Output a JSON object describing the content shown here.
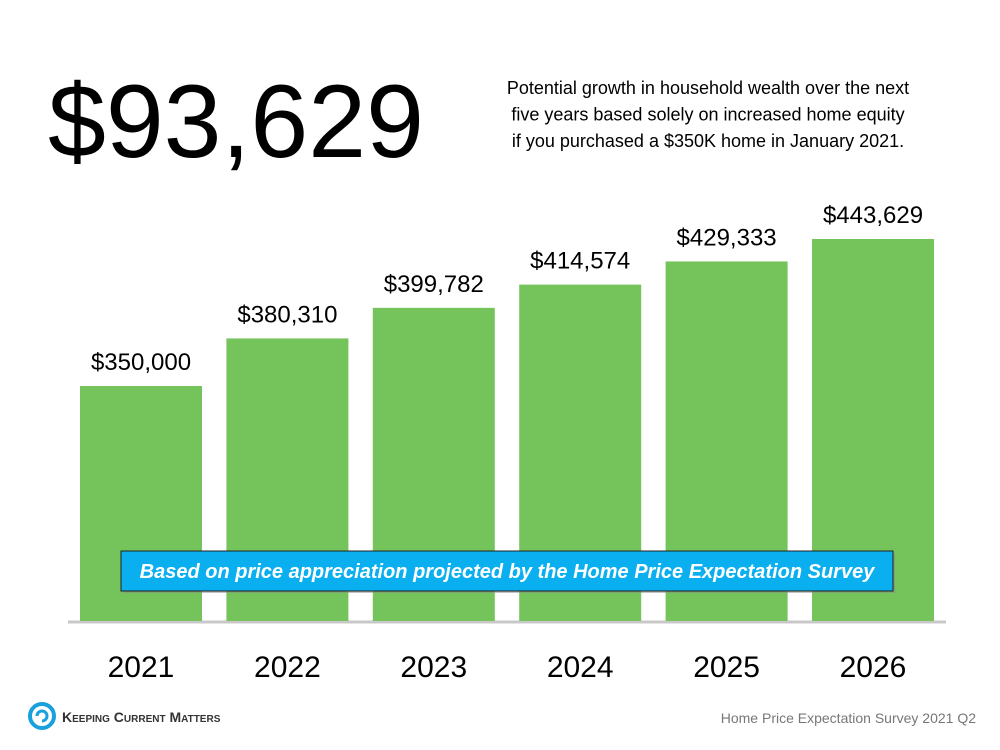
{
  "chart_data": {
    "type": "bar",
    "title": "$93,629",
    "subtitle": [
      "Potential growth in household wealth over the next",
      "five years based solely on increased home equity",
      "if you purchased a $350K home in January 2021."
    ],
    "categories": [
      "2021",
      "2022",
      "2023",
      "2024",
      "2025",
      "2026"
    ],
    "values": [
      350000,
      380310,
      399782,
      414574,
      429333,
      443629
    ],
    "value_labels": [
      "$350,000",
      "$380,310",
      "$399,782",
      "$414,574",
      "$429,333",
      "$443,629"
    ],
    "color": "#75c45b",
    "annotation": "Based on price appreciation projected by the Home Price Expectation Survey",
    "source": "Home Price Expectation Survey 2021 Q2",
    "brand": "Keeping Current Matters"
  }
}
